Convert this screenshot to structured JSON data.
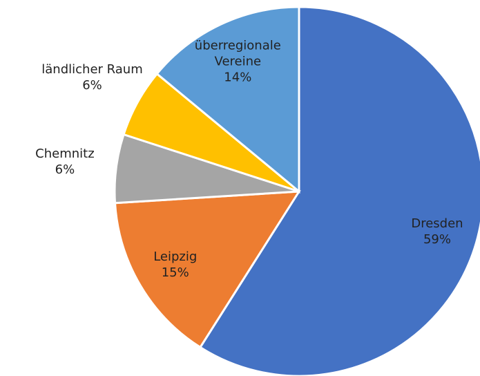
{
  "chart_data": {
    "type": "pie",
    "categories": [
      "Dresden",
      "Leipzig",
      "Chemnitz",
      "ländlicher Raum",
      "überregionale Vereine"
    ],
    "values": [
      59,
      15,
      6,
      6,
      14
    ],
    "value_labels": [
      "59%",
      "15%",
      "6%",
      "6%",
      "14%"
    ],
    "colors": [
      "#4472c4",
      "#ed7d31",
      "#a5a5a5",
      "#ffc000",
      "#5b9bd5"
    ]
  }
}
